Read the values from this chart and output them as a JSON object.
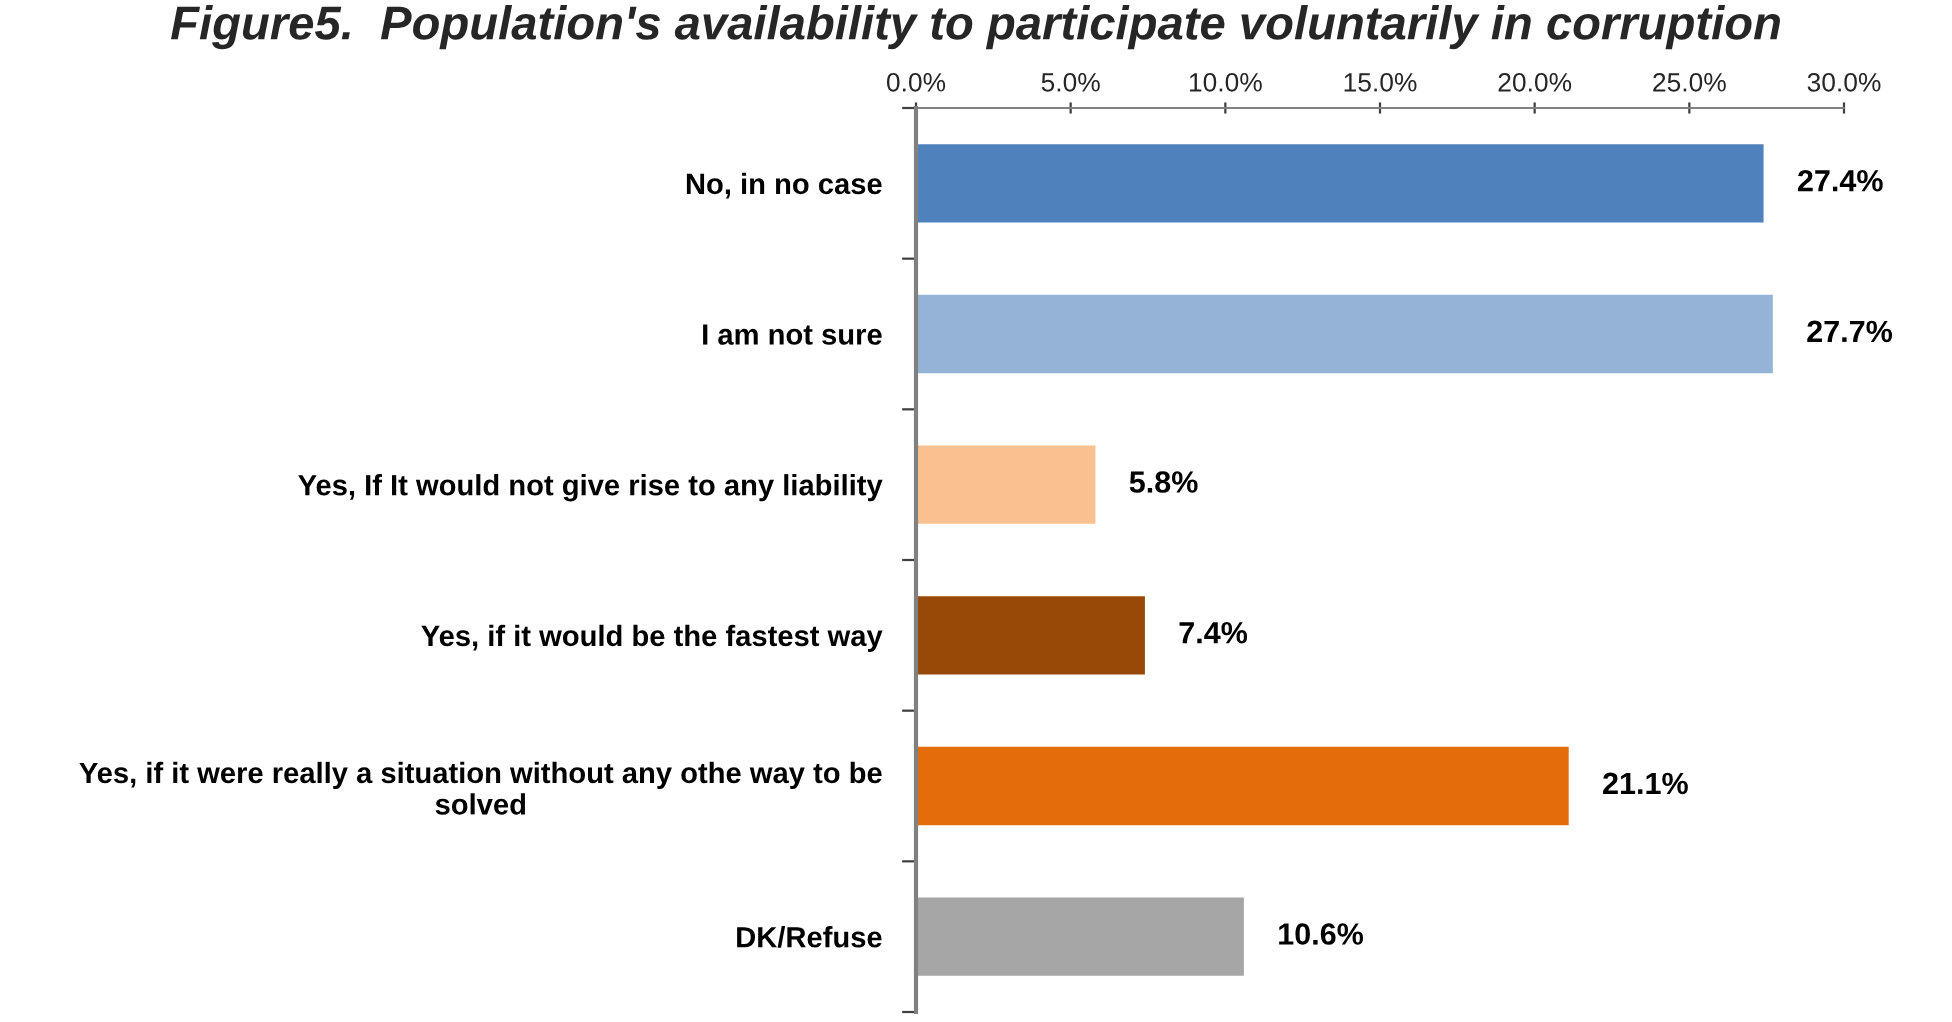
{
  "chart_data": {
    "type": "bar",
    "orientation": "horizontal",
    "title": "Figure5.  Population's availability to participate voluntarily in corruption",
    "categories": [
      "No, in no case",
      "I am not sure",
      "Yes, If It would not give rise to any liability",
      "Yes, if it would be the fastest way",
      "Yes, if it were really a situation without any othe way to be solved",
      "DK/Refuse"
    ],
    "values": [
      27.4,
      27.7,
      5.8,
      7.4,
      21.1,
      10.6
    ],
    "colors": [
      "#4f81bd",
      "#95b3d7",
      "#fac090",
      "#984807",
      "#e46c0a",
      "#a6a6a6"
    ],
    "value_labels": [
      "27.4%",
      "27.7%",
      "5.8%",
      "7.4%",
      "21.1%",
      "10.6%"
    ],
    "xlim": [
      0,
      30
    ],
    "xticks": [
      {
        "value": 0,
        "label": "0.0%"
      },
      {
        "value": 5,
        "label": "5.0%"
      },
      {
        "value": 10,
        "label": "10.0%"
      },
      {
        "value": 15,
        "label": "15.0%"
      },
      {
        "value": 20,
        "label": "20.0%"
      },
      {
        "value": 25,
        "label": "25.0%"
      },
      {
        "value": 30,
        "label": "30.0%"
      }
    ]
  }
}
